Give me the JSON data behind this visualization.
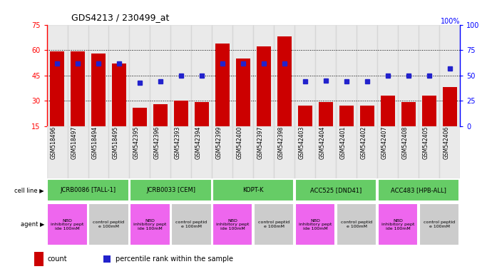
{
  "title": "GDS4213 / 230499_at",
  "samples": [
    "GSM518496",
    "GSM518497",
    "GSM518494",
    "GSM518495",
    "GSM542395",
    "GSM542396",
    "GSM542393",
    "GSM542394",
    "GSM542399",
    "GSM542400",
    "GSM542397",
    "GSM542398",
    "GSM542403",
    "GSM542404",
    "GSM542401",
    "GSM542402",
    "GSM542407",
    "GSM542408",
    "GSM542405",
    "GSM542406"
  ],
  "counts": [
    59,
    59,
    58,
    52,
    26,
    28,
    30,
    29,
    64,
    55,
    62,
    68,
    27,
    29,
    27,
    27,
    33,
    29,
    33,
    38
  ],
  "percentiles": [
    62,
    62,
    62,
    62,
    43,
    44,
    50,
    50,
    62,
    62,
    62,
    62,
    44,
    45,
    44,
    44,
    50,
    50,
    50,
    57
  ],
  "ylim_left": [
    15,
    75
  ],
  "ylim_right": [
    0,
    100
  ],
  "yticks_left": [
    15,
    30,
    45,
    60,
    75
  ],
  "yticks_right": [
    0,
    25,
    50,
    75,
    100
  ],
  "bar_color": "#CC0000",
  "dot_color": "#2222CC",
  "col_bg": "#CCCCCC",
  "cell_line_color": "#66CC66",
  "cell_lines": [
    {
      "label": "JCRB0086 [TALL-1]",
      "start": 0,
      "end": 4
    },
    {
      "label": "JCRB0033 [CEM]",
      "start": 4,
      "end": 8
    },
    {
      "label": "KOPT-K",
      "start": 8,
      "end": 12
    },
    {
      "label": "ACC525 [DND41]",
      "start": 12,
      "end": 16
    },
    {
      "label": "ACC483 [HPB-ALL]",
      "start": 16,
      "end": 20
    }
  ],
  "nbd_color": "#EE66EE",
  "ctrl_color": "#CCCCCC",
  "agents": [
    {
      "label": "NBD\ninhibitory pept\nide 100mM",
      "start": 0,
      "end": 2,
      "type": "nbd"
    },
    {
      "label": "control peptid\ne 100mM",
      "start": 2,
      "end": 4,
      "type": "ctrl"
    },
    {
      "label": "NBD\ninhibitory pept\nide 100mM",
      "start": 4,
      "end": 6,
      "type": "nbd"
    },
    {
      "label": "control peptid\ne 100mM",
      "start": 6,
      "end": 8,
      "type": "ctrl"
    },
    {
      "label": "NBD\ninhibitory pept\nide 100mM",
      "start": 8,
      "end": 10,
      "type": "nbd"
    },
    {
      "label": "control peptid\ne 100mM",
      "start": 10,
      "end": 12,
      "type": "ctrl"
    },
    {
      "label": "NBD\ninhibitory pept\nide 100mM",
      "start": 12,
      "end": 14,
      "type": "nbd"
    },
    {
      "label": "control peptid\ne 100mM",
      "start": 14,
      "end": 16,
      "type": "ctrl"
    },
    {
      "label": "NBD\ninhibitory pept\nide 100mM",
      "start": 16,
      "end": 18,
      "type": "nbd"
    },
    {
      "label": "control peptid\ne 100mM",
      "start": 18,
      "end": 20,
      "type": "ctrl"
    }
  ],
  "legend_bar_label": "count",
  "legend_dot_label": "percentile rank within the sample",
  "cell_line_row_label": "cell line",
  "agent_row_label": "agent"
}
